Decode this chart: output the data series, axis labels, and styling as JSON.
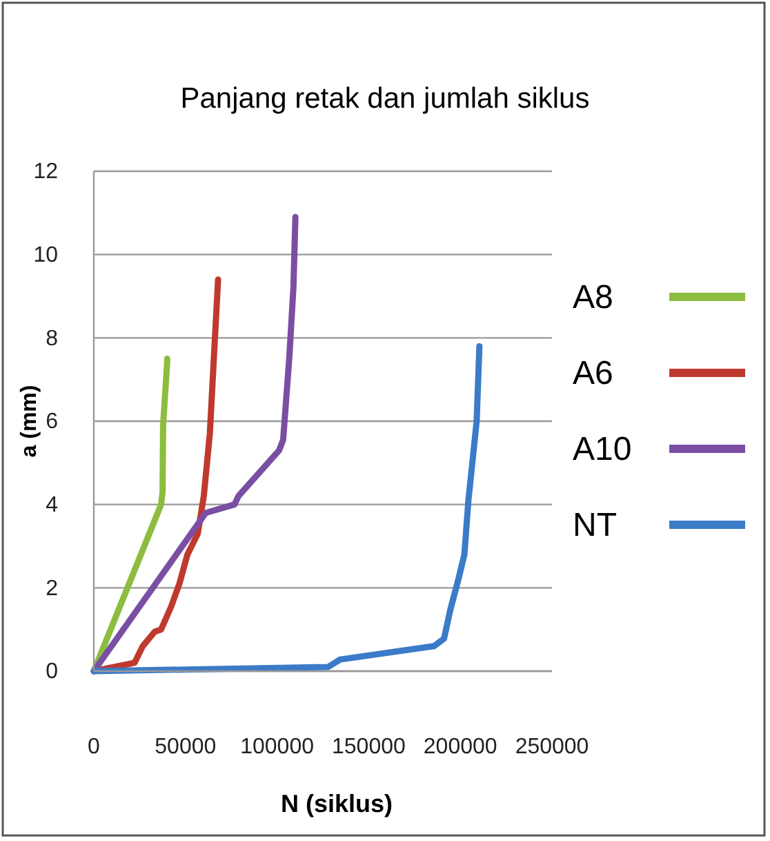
{
  "chart_data": {
    "type": "line",
    "title": "Panjang retak dan jumlah siklus",
    "xlabel": "N (siklus)",
    "ylabel": "a (mm)",
    "xlim": [
      0,
      250000
    ],
    "xticks": [
      0,
      50000,
      100000,
      150000,
      200000,
      250000
    ],
    "ylim": [
      0,
      12
    ],
    "yticks": [
      0,
      2,
      4,
      6,
      8,
      10,
      12
    ],
    "grid": "y",
    "legend": "right",
    "series": [
      {
        "name": "A8",
        "color": "#8cbd3f",
        "x": [
          0,
          36700,
          37500,
          37800,
          40000,
          40000
        ],
        "values": [
          0,
          4,
          4.3,
          5.9,
          7.4,
          7.5
        ]
      },
      {
        "name": "A6",
        "color": "#c0392f",
        "x": [
          0,
          22200,
          26700,
          33300,
          36700,
          42200,
          46700,
          51100,
          56700,
          60000,
          63300,
          65600,
          67800
        ],
        "values": [
          0,
          0.2,
          0.6,
          0.95,
          1.0,
          1.55,
          2.1,
          2.8,
          3.3,
          4.2,
          5.7,
          7.6,
          9.4
        ]
      },
      {
        "name": "A10",
        "color": "#7a4fa3",
        "x": [
          0,
          61100,
          76700,
          78900,
          101100,
          103300,
          106700,
          108900,
          110000
        ],
        "values": [
          0,
          3.8,
          4.0,
          4.2,
          5.3,
          5.55,
          7.55,
          9.2,
          10.9
        ]
      },
      {
        "name": "NT",
        "color": "#3b7bc8",
        "x": [
          0,
          127800,
          134400,
          185600,
          191100,
          194400,
          198900,
          202200,
          204400,
          208900,
          210400
        ],
        "values": [
          0,
          0.1,
          0.28,
          0.6,
          0.78,
          1.45,
          2.2,
          2.8,
          4.1,
          6.0,
          7.8
        ]
      }
    ]
  }
}
